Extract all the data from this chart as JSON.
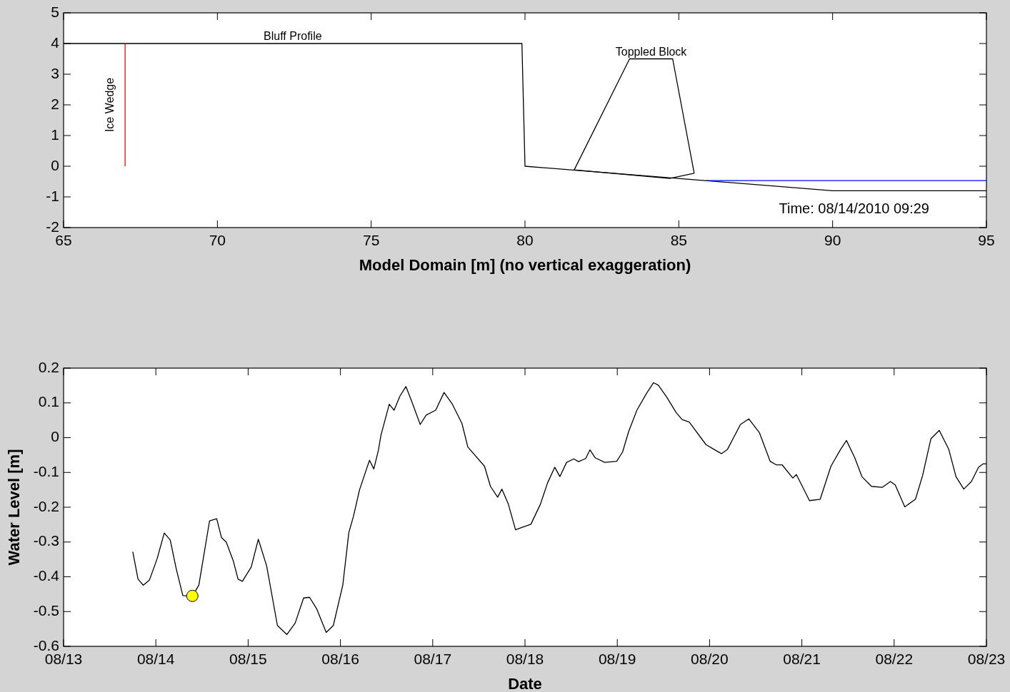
{
  "chart_data": [
    {
      "type": "line",
      "xlabel": "Model Domain [m] (no vertical exaggeration)",
      "xlim": [
        65,
        95
      ],
      "xticks": [
        65,
        70,
        75,
        80,
        85,
        90,
        95
      ],
      "ylim": [
        -2,
        5
      ],
      "yticks": [
        -2,
        -1,
        0,
        1,
        2,
        3,
        4,
        5
      ],
      "grid": false,
      "legend": false,
      "annotations": [
        "Time: 08/14/2010 09:29"
      ],
      "series": [
        {
          "name": "Bluff Profile",
          "color": "#000000",
          "x": [
            65,
            79.9,
            80,
            90,
            95
          ],
          "values": [
            4,
            4,
            0,
            -0.8,
            -0.8
          ]
        },
        {
          "name": "Toppled Block",
          "color": "#000000",
          "x": [
            81.6,
            83.4,
            84.8,
            85.5
          ],
          "values": [
            -0.12,
            3.5,
            3.5,
            -0.23
          ]
        },
        {
          "color": "#000000",
          "x": [
            81.6,
            84.7,
            85.5
          ],
          "values": [
            -0.12,
            -0.4,
            -0.23
          ]
        },
        {
          "color": "#0000ff",
          "x": [
            85.9,
            95
          ],
          "values": [
            -0.47,
            -0.47
          ]
        },
        {
          "name": "Ice Wedge",
          "color": "#ff0000",
          "x": [
            67,
            67
          ],
          "values": [
            0,
            4
          ]
        }
      ]
    },
    {
      "type": "line",
      "xlabel": "Date",
      "ylabel": "Water Level [m]",
      "xlim": [
        "2010-08-13",
        "2010-08-23"
      ],
      "xticks": [
        {
          "value": "2010-08-13",
          "label": "08/13"
        },
        {
          "value": "2010-08-14",
          "label": "08/14"
        },
        {
          "value": "2010-08-15",
          "label": "08/15"
        },
        {
          "value": "2010-08-16",
          "label": "08/16"
        },
        {
          "value": "2010-08-17",
          "label": "08/17"
        },
        {
          "value": "2010-08-18",
          "label": "08/18"
        },
        {
          "value": "2010-08-19",
          "label": "08/19"
        },
        {
          "value": "2010-08-20",
          "label": "08/20"
        },
        {
          "value": "2010-08-21",
          "label": "08/21"
        },
        {
          "value": "2010-08-22",
          "label": "08/22"
        },
        {
          "value": "2010-08-23",
          "label": "08/23"
        }
      ],
      "ylim": [
        -0.6,
        0.2
      ],
      "yticks": [
        -0.6,
        -0.5,
        -0.4,
        -0.3,
        -0.2,
        -0.1,
        0,
        0.1,
        0.2
      ],
      "grid": false,
      "legend": false,
      "series": [
        {
          "color": "#000000",
          "x": [
            "2010-08-13T18:00",
            "2010-08-13T19:22",
            "2010-08-13T20:44",
            "2010-08-13T22:21",
            "2010-08-14T00:20",
            "2010-08-14T02:11",
            "2010-08-14T03:44",
            "2010-08-14T05:17",
            "2010-08-14T07:01",
            "2010-08-14T09:30",
            "2010-08-14T11:11",
            "2010-08-14T13:58",
            "2010-08-14T15:49",
            "2010-08-14T17:04",
            "2010-08-14T18:18",
            "2010-08-14T20:09",
            "2010-08-14T21:23",
            "2010-08-14T22:30",
            "2010-08-15T00:48",
            "2010-08-15T02:39",
            "2010-08-15T04:49",
            "2010-08-15T07:37",
            "2010-08-15T10:05",
            "2010-08-15T12:14",
            "2010-08-15T14:25",
            "2010-08-15T15:58",
            "2010-08-15T17:49",
            "2010-08-15T20:18",
            "2010-08-15T22:09",
            "2010-08-16T00:37",
            "2010-08-16T02:11",
            "2010-08-16T03:25",
            "2010-08-16T04:58",
            "2010-08-16T06:49",
            "2010-08-16T07:34",
            "2010-08-16T08:41",
            "2010-08-16T09:55",
            "2010-08-16T10:32",
            "2010-08-16T12:42",
            "2010-08-16T13:57",
            "2010-08-16T15:30",
            "2010-08-16T17:02",
            "2010-08-16T18:35",
            "2010-08-16T20:45",
            "2010-08-16T22:18",
            "2010-08-17T00:46",
            "2010-08-17T02:57",
            "2010-08-17T05:07",
            "2010-08-17T07:36",
            "2010-08-17T09:08",
            "2010-08-17T13:28",
            "2010-08-17T15:01",
            "2010-08-17T16:53",
            "2010-08-17T18:00",
            "2010-08-17T19:40",
            "2010-08-17T21:32",
            "2010-08-17T23:41",
            "2010-08-18T01:32",
            "2010-08-18T04:01",
            "2010-08-18T05:52",
            "2010-08-18T07:44",
            "2010-08-18T09:05",
            "2010-08-18T10:49",
            "2010-08-18T12:41",
            "2010-08-18T13:55",
            "2010-08-18T15:47",
            "2010-08-18T16:54",
            "2010-08-18T18:16",
            "2010-08-18T20:45",
            "2010-08-18T23:50",
            "2010-08-19T01:23",
            "2010-08-19T02:56",
            "2010-08-19T05:06",
            "2010-08-19T07:35",
            "2010-08-19T09:26",
            "2010-08-19T10:40",
            "2010-08-19T12:50",
            "2010-08-19T15:19",
            "2010-08-19T16:52",
            "2010-08-19T18:43",
            "2010-08-19T23:04",
            "2010-08-20T01:13",
            "2010-08-20T03:05",
            "2010-08-20T04:38",
            "2010-08-20T08:02",
            "2010-08-20T10:12",
            "2010-08-20T12:59",
            "2010-08-20T15:46",
            "2010-08-20T17:19",
            "2010-08-20T18:52",
            "2010-08-20T21:39",
            "2010-08-20T22:35",
            "2010-08-21T01:59",
            "2010-08-21T04:46",
            "2010-08-21T07:34",
            "2010-08-21T10:03",
            "2010-08-21T11:36",
            "2010-08-21T13:46",
            "2010-08-21T15:37",
            "2010-08-21T18:06",
            "2010-08-21T20:53",
            "2010-08-21T23:02",
            "2010-08-22T00:17",
            "2010-08-22T02:46",
            "2010-08-22T05:33",
            "2010-08-22T07:24",
            "2010-08-22T09:34",
            "2010-08-22T11:44",
            "2010-08-22T14:13",
            "2010-08-22T16:05",
            "2010-08-22T18:07",
            "2010-08-22T20:05",
            "2010-08-22T21:57",
            "2010-08-22T23:11",
            "2010-08-23T00:00"
          ],
          "values": [
            -0.328,
            -0.407,
            -0.424,
            -0.409,
            -0.348,
            -0.274,
            -0.294,
            -0.376,
            -0.454,
            -0.456,
            -0.424,
            -0.239,
            -0.233,
            -0.287,
            -0.3,
            -0.355,
            -0.407,
            -0.413,
            -0.372,
            -0.292,
            -0.369,
            -0.54,
            -0.566,
            -0.533,
            -0.461,
            -0.459,
            -0.492,
            -0.56,
            -0.54,
            -0.424,
            -0.273,
            -0.225,
            -0.15,
            -0.089,
            -0.065,
            -0.09,
            -0.034,
            0.007,
            0.096,
            0.079,
            0.12,
            0.147,
            0.103,
            0.038,
            0.065,
            0.079,
            0.13,
            0.096,
            0.041,
            -0.027,
            -0.082,
            -0.14,
            -0.171,
            -0.148,
            -0.191,
            -0.265,
            -0.256,
            -0.249,
            -0.191,
            -0.13,
            -0.085,
            -0.112,
            -0.071,
            -0.061,
            -0.069,
            -0.06,
            -0.035,
            -0.058,
            -0.071,
            -0.068,
            -0.041,
            0.017,
            0.079,
            0.127,
            0.158,
            0.151,
            0.117,
            0.072,
            0.052,
            0.045,
            -0.02,
            -0.034,
            -0.046,
            -0.034,
            0.038,
            0.054,
            0.014,
            -0.068,
            -0.078,
            -0.078,
            -0.116,
            -0.106,
            -0.181,
            -0.177,
            -0.082,
            -0.034,
            -0.008,
            -0.058,
            -0.112,
            -0.14,
            -0.143,
            -0.126,
            -0.136,
            -0.199,
            -0.177,
            -0.109,
            -0.003,
            0.021,
            -0.034,
            -0.112,
            -0.148,
            -0.126,
            -0.085,
            -0.075,
            -0.075
          ]
        },
        {
          "type": "scatter",
          "marker": "circle",
          "color": "#ffff00",
          "x": [
            "2010-08-14T09:29"
          ],
          "values": [
            -0.455
          ]
        }
      ]
    }
  ]
}
